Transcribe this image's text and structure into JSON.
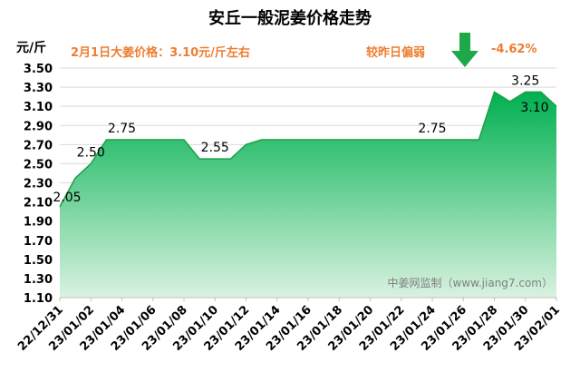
{
  "title": "安丘一般泥姜价格走势",
  "unit": "元/斤",
  "price_note": "2月1日大姜价格：3.10元/斤左右",
  "change": {
    "label": "较昨日偏弱",
    "value": "-4.62%",
    "icon": "down-arrow-icon"
  },
  "watermark": "中姜网监制（www.jiang7.com）",
  "colors": {
    "accent": "#ED7D31",
    "area_top": "#00B050",
    "area_bottom": "#D9F2E0",
    "line": "#1E9E48",
    "arrow": "#1FA84A"
  },
  "chart_data": {
    "type": "area",
    "title": "安丘一般泥姜价格走势",
    "ylabel": "元/斤",
    "xlabel": "",
    "ylim": [
      1.1,
      3.5
    ],
    "yticks": [
      "1.10",
      "1.30",
      "1.50",
      "1.70",
      "1.90",
      "2.10",
      "2.30",
      "2.50",
      "2.70",
      "2.90",
      "3.10",
      "3.30",
      "3.50"
    ],
    "xticks": [
      "22/12/31",
      "23/01/02",
      "23/01/04",
      "23/01/06",
      "23/01/08",
      "23/01/10",
      "23/01/12",
      "23/01/14",
      "23/01/16",
      "23/01/18",
      "23/01/20",
      "23/01/22",
      "23/01/24",
      "23/01/26",
      "23/01/28",
      "23/01/30",
      "23/02/01"
    ],
    "x": [
      "22/12/31",
      "23/01/01",
      "23/01/02",
      "23/01/03",
      "23/01/04",
      "23/01/05",
      "23/01/06",
      "23/01/07",
      "23/01/08",
      "23/01/09",
      "23/01/10",
      "23/01/11",
      "23/01/12",
      "23/01/13",
      "23/01/14",
      "23/01/15",
      "23/01/16",
      "23/01/17",
      "23/01/18",
      "23/01/19",
      "23/01/20",
      "23/01/21",
      "23/01/22",
      "23/01/23",
      "23/01/24",
      "23/01/25",
      "23/01/26",
      "23/01/27",
      "23/01/28",
      "23/01/29",
      "23/01/30",
      "23/01/31",
      "23/02/01"
    ],
    "values": [
      2.05,
      2.35,
      2.5,
      2.75,
      2.75,
      2.75,
      2.75,
      2.75,
      2.75,
      2.55,
      2.55,
      2.55,
      2.7,
      2.75,
      2.75,
      2.75,
      2.75,
      2.75,
      2.75,
      2.75,
      2.75,
      2.75,
      2.75,
      2.75,
      2.75,
      2.75,
      2.75,
      2.75,
      3.25,
      3.15,
      3.25,
      3.25,
      3.1
    ],
    "data_labels": [
      {
        "x": "22/12/31",
        "text": "2.05"
      },
      {
        "x": "23/01/02",
        "text": "2.50"
      },
      {
        "x": "23/01/04",
        "text": "2.75"
      },
      {
        "x": "23/01/10",
        "text": "2.55"
      },
      {
        "x": "23/01/24",
        "text": "2.75"
      },
      {
        "x": "23/01/30",
        "text": "3.25"
      },
      {
        "x": "23/02/01",
        "text": "3.10"
      }
    ],
    "grid": true,
    "legend": "none"
  }
}
